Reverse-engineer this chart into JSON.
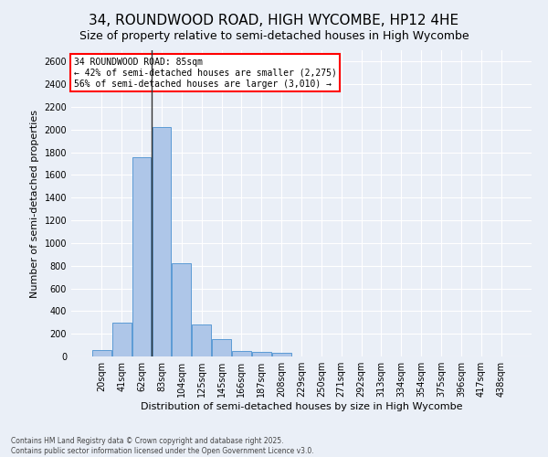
{
  "title": "34, ROUNDWOOD ROAD, HIGH WYCOMBE, HP12 4HE",
  "subtitle": "Size of property relative to semi-detached houses in High Wycombe",
  "xlabel": "Distribution of semi-detached houses by size in High Wycombe",
  "ylabel": "Number of semi-detached properties",
  "footnote1": "Contains HM Land Registry data © Crown copyright and database right 2025.",
  "footnote2": "Contains public sector information licensed under the Open Government Licence v3.0.",
  "categories": [
    "20sqm",
    "41sqm",
    "62sqm",
    "83sqm",
    "104sqm",
    "125sqm",
    "145sqm",
    "166sqm",
    "187sqm",
    "208sqm",
    "229sqm",
    "250sqm",
    "271sqm",
    "292sqm",
    "313sqm",
    "334sqm",
    "354sqm",
    "375sqm",
    "396sqm",
    "417sqm",
    "438sqm"
  ],
  "values": [
    60,
    295,
    1755,
    2020,
    820,
    285,
    155,
    50,
    40,
    30,
    0,
    0,
    0,
    0,
    0,
    0,
    0,
    0,
    0,
    0,
    0
  ],
  "bar_color": "#aec6e8",
  "bar_edge_color": "#5b9bd5",
  "line_x_index": 3,
  "annotation_text_line1": "34 ROUNDWOOD ROAD: 85sqm",
  "annotation_text_line2": "← 42% of semi-detached houses are smaller (2,275)",
  "annotation_text_line3": "56% of semi-detached houses are larger (3,010) →",
  "ylim": [
    0,
    2700
  ],
  "bg_color": "#eaeff7",
  "plot_bg_color": "#eaeff7",
  "grid_color": "#ffffff",
  "title_fontsize": 11,
  "subtitle_fontsize": 9,
  "ylabel_fontsize": 8,
  "xlabel_fontsize": 8,
  "tick_fontsize": 7,
  "annot_fontsize": 7,
  "footnote_fontsize": 5.5
}
